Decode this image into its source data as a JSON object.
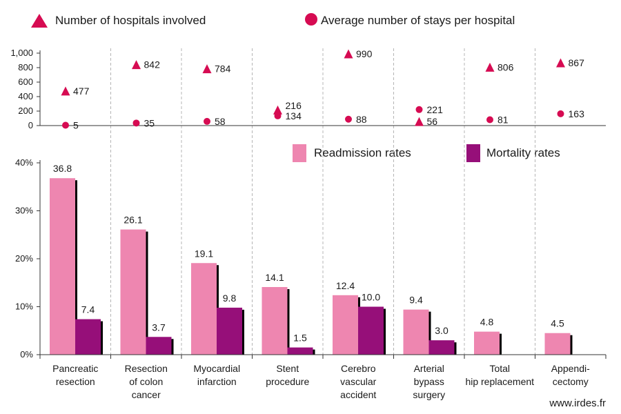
{
  "chart_data": {
    "type": "bar",
    "categories": [
      [
        "Pancreatic",
        "resection"
      ],
      [
        "Resection",
        "of colon",
        "cancer"
      ],
      [
        "Myocardial",
        "infarction"
      ],
      [
        "Stent",
        "procedure"
      ],
      [
        "Cerebro",
        "vascular",
        "accident"
      ],
      [
        "Arterial",
        "bypass",
        "surgery"
      ],
      [
        "Total",
        "hip replacement"
      ],
      [
        "Appendi-",
        "cectomy"
      ]
    ],
    "top_panel": {
      "type": "scatter",
      "ylim": [
        0,
        1000
      ],
      "yticks": [
        "0",
        "200",
        "400",
        "600",
        "800",
        "1,000"
      ],
      "series": [
        {
          "name": "Number of hospitals involved",
          "marker": "triangle",
          "values": [
            477,
            842,
            784,
            216,
            990,
            56,
            806,
            867
          ]
        },
        {
          "name": "Average number of stays per hospital",
          "marker": "circle",
          "values": [
            5,
            35,
            58,
            134,
            88,
            221,
            81,
            163
          ]
        }
      ]
    },
    "bottom_panel": {
      "type": "bar",
      "ylim": [
        0,
        40
      ],
      "yticks": [
        "0%",
        "10%",
        "20%",
        "30%",
        "40%"
      ],
      "series": [
        {
          "name": "Readmission rates",
          "values": [
            36.8,
            26.1,
            19.1,
            14.1,
            12.4,
            9.4,
            4.8,
            4.5
          ],
          "labels": [
            "36.8",
            "26.1",
            "19.1",
            "14.1",
            "12.4",
            "9.4",
            "4.8",
            "4.5"
          ]
        },
        {
          "name": "Mortality rates",
          "values": [
            7.4,
            3.7,
            9.8,
            1.5,
            10.0,
            3.0,
            null,
            null
          ],
          "labels": [
            "7.4",
            "3.7",
            "9.8",
            "1.5",
            "10.0",
            "3.0",
            "",
            ""
          ]
        }
      ]
    },
    "colors": {
      "marker": "#d60b52",
      "readmission": "#ee86b0",
      "mortality": "#960f79",
      "shadow": "#000000"
    },
    "source": "www.irdes.fr"
  }
}
